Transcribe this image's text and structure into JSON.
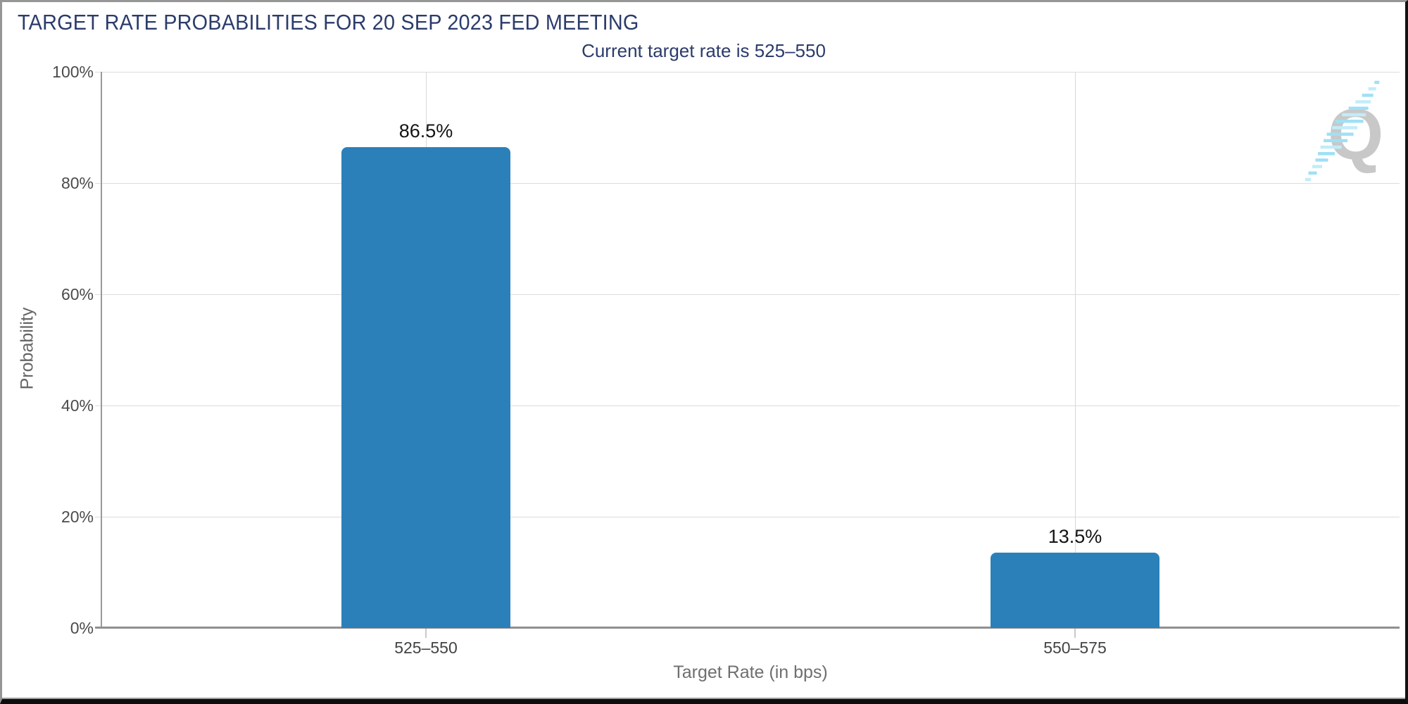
{
  "header": {
    "title": "TARGET RATE PROBABILITIES FOR 20 SEP 2023 FED MEETING",
    "subtitle": "Current target rate is 525–550"
  },
  "watermark": {
    "letter": "Q",
    "name": "quikstrike-logo"
  },
  "colors": {
    "title_navy": "#2b3b6b",
    "bar_blue": "#2b80ba",
    "grid_gray": "#dcdcdc",
    "axis_gray": "#9a9a9a",
    "tick_text": "#4b4b4b",
    "axis_title_text": "#6f6f6f",
    "bar_label_text": "#141414",
    "watermark_gray": "#c8c8c8",
    "watermark_cyan": "#9fe0f5"
  },
  "chart_data": {
    "type": "bar",
    "title": "TARGET RATE PROBABILITIES FOR 20 SEP 2023 FED MEETING",
    "subtitle": "Current target rate is 525–550",
    "categories": [
      "525–550",
      "550–575"
    ],
    "values": [
      86.5,
      13.5
    ],
    "value_labels": [
      "86.5%",
      "13.5%"
    ],
    "xlabel": "Target Rate (in bps)",
    "ylabel": "Probability",
    "ylim": [
      0,
      100
    ],
    "yticks": [
      0,
      20,
      40,
      60,
      80,
      100
    ],
    "ytick_labels": [
      "0%",
      "20%",
      "40%",
      "60%",
      "80%",
      "100%"
    ],
    "grid": true,
    "legend": false,
    "bar_color": "#2b80ba"
  }
}
